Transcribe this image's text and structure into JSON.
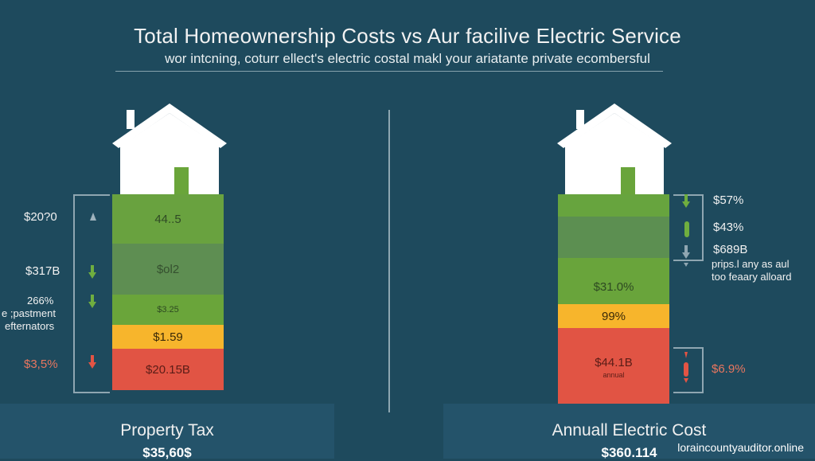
{
  "header": {
    "title": "Total Homeownership Costs vs Aur facilive Electric Service",
    "subtitle": "wor intcning, coturr ellect's electric costal makl your ariatante private ecombersful"
  },
  "left": {
    "footer_title": "Property Tax",
    "footer_value": "$35,60$",
    "segments": [
      {
        "label": "44..5",
        "color": "#69a23f",
        "text_color": "#2f4a25"
      },
      {
        "label": "$ol2",
        "color": "#5e8e52",
        "text_color": "#35502f"
      },
      {
        "label": "$3.25",
        "color": "#6aa53a",
        "text_color": "#2e4a22"
      },
      {
        "label": "$1.59",
        "color": "#f7b52c",
        "text_color": "#3b2a08"
      },
      {
        "label": "$20.15B",
        "color": "#e15444",
        "text_color": "#5a1d17"
      }
    ],
    "side_labels": [
      "$20?0",
      "$317B",
      "266%",
      "e ;pastment",
      "efternators",
      "$3,5%"
    ],
    "arrow_colors": [
      "#9fb3bd",
      "#6fae3f",
      "#6fae3f",
      "#e35444"
    ]
  },
  "right": {
    "footer_title": "Annuall Electric Cost",
    "footer_value": "$360.114",
    "segments": [
      {
        "label": "",
        "color": "#67a43e",
        "text_color": "#2f4a25"
      },
      {
        "label": "",
        "color": "#5c8f51",
        "text_color": "#35502f"
      },
      {
        "label": "",
        "color": "#69a43b",
        "text_color": "#2e4a22"
      },
      {
        "label": "$31.0%",
        "color": "#69a43b",
        "text_color": "#2e4a22"
      },
      {
        "label": "99%",
        "color": "#f7b52c",
        "text_color": "#3b2a08"
      },
      {
        "label": "$44.1B",
        "sub": "annual",
        "color": "#e15444",
        "text_color": "#5a1d17"
      }
    ],
    "side_labels": [
      "$57%",
      "$43%",
      "$689B",
      "prips.l any as aul",
      "too feaary alloard",
      "$6.9%"
    ],
    "arrow_colors": [
      "#6fae3f",
      "#6fae3f",
      "#8fa6b1",
      "#e35444"
    ]
  },
  "watermark": "loraincountyauditor.online"
}
